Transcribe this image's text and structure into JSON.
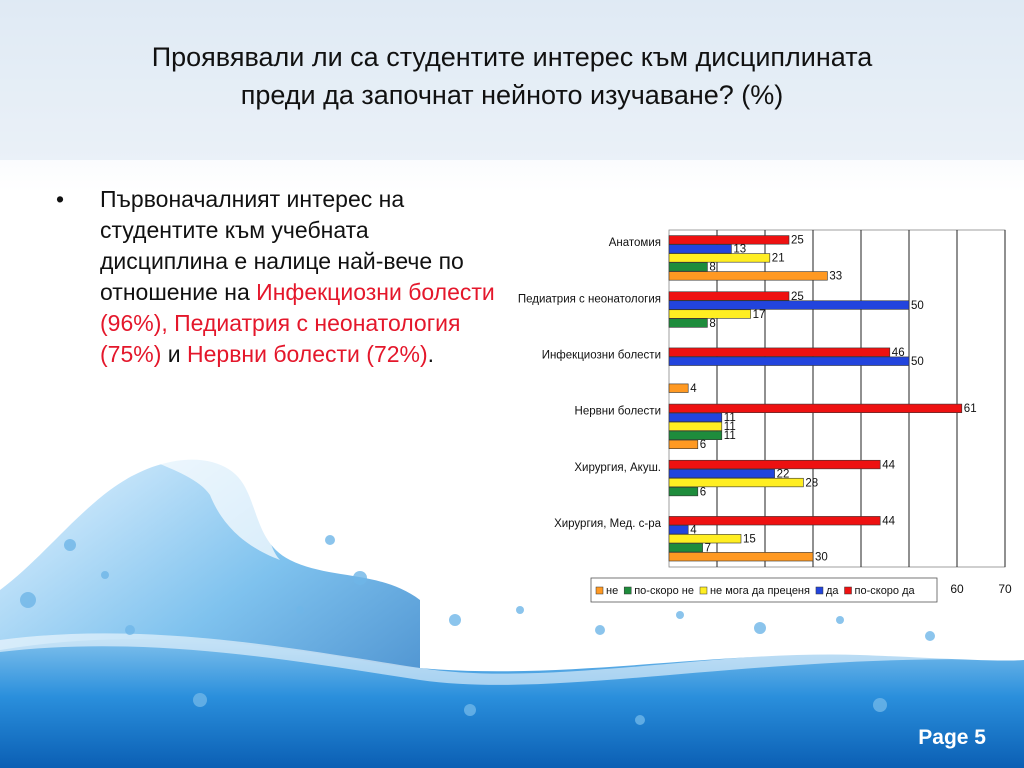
{
  "slide": {
    "title_line1": "Проявявали ли са студентите интерес към дисциплината",
    "title_line2": "преди да започнат нейното изучаване? (%)",
    "bullet": {
      "part1": "Първоначалният интерес на студентите към учебната дисциплина е налице най-вече по отношение на ",
      "highlight1": "Инфекциозни болести (96%), Педиатрия с неонатология (75%)",
      "part2": " и ",
      "highlight2": "Нервни болести (72%)",
      "part3": "."
    },
    "page_label": "Page 5",
    "highlight_color": "#e4172b"
  },
  "chart_data": {
    "type": "bar",
    "orientation": "horizontal",
    "categories": [
      "Анатомия",
      "Педиатрия с неонатология",
      "Инфекциозни болести",
      "Нервни болести",
      "Хирургия, Акуш.",
      "Хирургия, Мед. с-ра"
    ],
    "series": [
      {
        "name": "по-скоро да",
        "color": "#ee1111",
        "values": [
          25,
          25,
          46,
          61,
          44,
          44
        ]
      },
      {
        "name": "да",
        "color": "#2244dd",
        "values": [
          13,
          50,
          50,
          11,
          22,
          4
        ]
      },
      {
        "name": "не мога да преценя",
        "color": "#ffee22",
        "values": [
          21,
          17,
          null,
          11,
          28,
          15
        ]
      },
      {
        "name": "по-скоро не",
        "color": "#1e8c3c",
        "values": [
          8,
          8,
          null,
          11,
          6,
          7
        ]
      },
      {
        "name": "не",
        "color": "#ff9922",
        "values": [
          33,
          null,
          4,
          6,
          null,
          30
        ]
      }
    ],
    "legend_order": [
      "не",
      "по-скоро не",
      "не мога да преценя",
      "да",
      "по-скоро да"
    ],
    "x_ticks_visible": [
      "60",
      "70"
    ],
    "xlim": [
      0,
      70
    ],
    "grid": true,
    "legend_position": "bottom"
  }
}
